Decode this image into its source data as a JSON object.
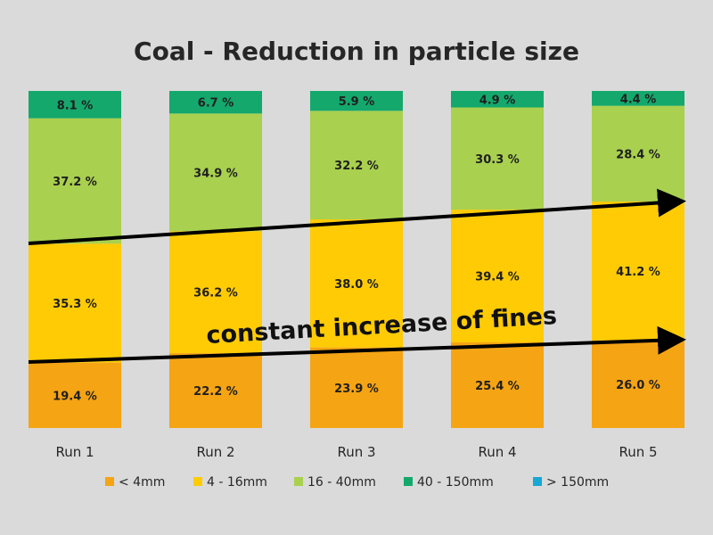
{
  "chart_data": {
    "type": "bar",
    "stacked": true,
    "title": "Coal - Reduction in particle size",
    "xlabel": "",
    "ylabel": "",
    "ylim": [
      0,
      100
    ],
    "grid": false,
    "legend_position": "bottom",
    "categories": [
      "Run 1",
      "Run 2",
      "Run 3",
      "Run 4",
      "Run 5"
    ],
    "series": [
      {
        "name": "< 4mm",
        "color": "#f5a414",
        "values": [
          19.4,
          22.2,
          23.9,
          25.4,
          26.0
        ],
        "labels": [
          "19.4 %",
          "22.2 %",
          "23.9 %",
          "25.4 %",
          "26.0 %"
        ]
      },
      {
        "name": "4 - 16mm",
        "color": "#fecb05",
        "values": [
          35.3,
          36.2,
          38.0,
          39.4,
          41.2
        ],
        "labels": [
          "35.3 %",
          "36.2 %",
          "38.0 %",
          "39.4 %",
          "41.2 %"
        ]
      },
      {
        "name": "16 - 40mm",
        "color": "#a9d04f",
        "values": [
          37.2,
          34.9,
          32.2,
          30.3,
          28.4
        ],
        "labels": [
          "37.2 %",
          "34.9 %",
          "32.2 %",
          "30.3 %",
          "28.4 %"
        ]
      },
      {
        "name": "40 - 150mm",
        "color": "#14a86c",
        "values": [
          8.1,
          6.7,
          5.9,
          4.9,
          4.4
        ],
        "labels": [
          "8.1 %",
          "6.7 %",
          "5.9 %",
          "4.9 %",
          "4.4 %"
        ]
      },
      {
        "name": "> 150mm",
        "color": "#17a8d4",
        "values": [
          0,
          0,
          0,
          0,
          0
        ],
        "labels": [
          "",
          "",
          "",
          "",
          ""
        ]
      }
    ],
    "annotations": [
      {
        "text": "constant increase of fines"
      }
    ]
  }
}
